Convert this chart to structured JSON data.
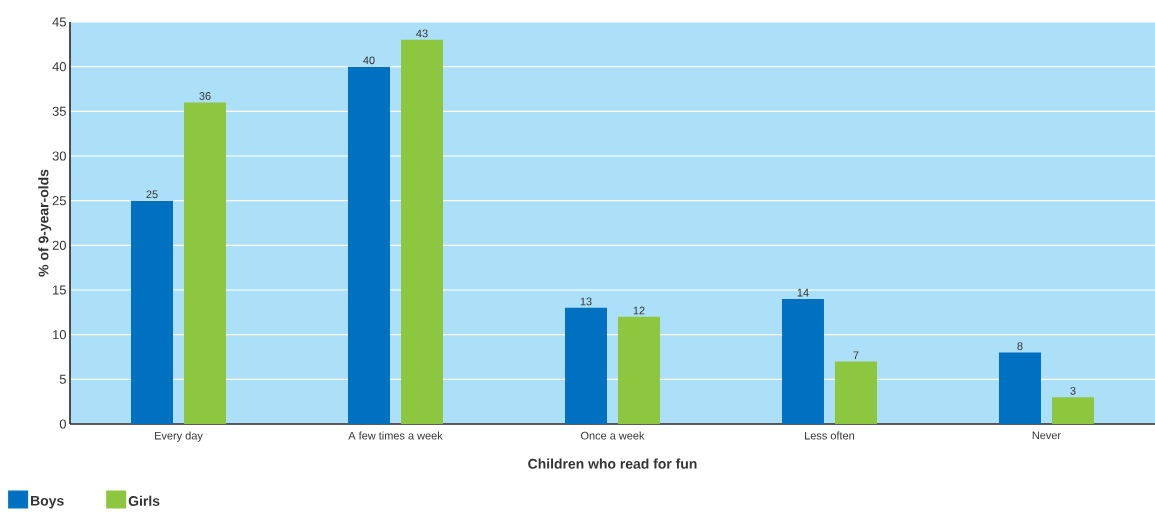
{
  "chart_data": {
    "type": "bar",
    "xlabel": "Children who read for fun",
    "ylabel": "% of 9-year-olds",
    "categories": [
      "Every day",
      "A few times a week",
      "Once a week",
      "Less often",
      "Never"
    ],
    "series": [
      {
        "name": "Boys",
        "color": "#0070c0",
        "values": [
          25,
          40,
          13,
          14,
          8
        ]
      },
      {
        "name": "Girls",
        "color": "#8dc63f",
        "values": [
          36,
          43,
          12,
          7,
          3
        ]
      }
    ],
    "ylim": [
      0,
      45
    ],
    "yticks": [
      0,
      5,
      10,
      15,
      20,
      25,
      30,
      35,
      40,
      45
    ],
    "data_labels": true,
    "grid": "y",
    "legend": "bottom left"
  }
}
